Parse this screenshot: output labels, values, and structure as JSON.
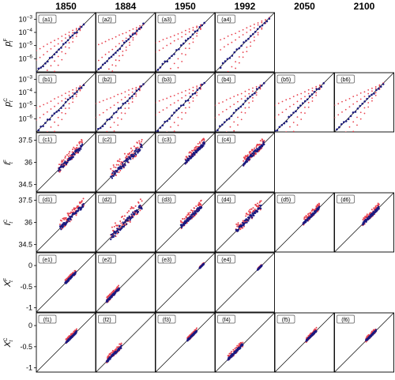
{
  "chart_data": {
    "type": "scatter",
    "layout": "grid 6 rows × 6 columns; identity diagonal in every panel; blue points = main series, red points = spread",
    "columns": [
      "1850",
      "1884",
      "1950",
      "1992",
      "2050",
      "2100"
    ],
    "rows": [
      {
        "id": "a",
        "ylabel": "p",
        "sup": "F",
        "sub": "t",
        "scale": "log",
        "ticks": [
          {
            "label": "10",
            "exp": "−3",
            "value": -3
          },
          {
            "label": "10",
            "exp": "−4",
            "value": -4
          },
          {
            "label": "10",
            "exp": "−5",
            "value": -5
          },
          {
            "label": "10",
            "exp": "−6",
            "value": -6
          }
        ],
        "ylim": [
          -7,
          -2.5
        ],
        "panels": [
          {
            "label": "(a1)",
            "present": true,
            "range": [
              -7,
              -3.4
            ],
            "fan": [
              0.55,
              0.75,
              1.25,
              1.6
            ]
          },
          {
            "label": "(a2)",
            "present": true,
            "range": [
              -6.8,
              -3.4
            ],
            "fan": [
              0.45,
              0.8,
              1.3,
              1.5
            ]
          },
          {
            "label": "(a3)",
            "present": true,
            "range": [
              -7,
              -3.3
            ],
            "fan": [
              0.4,
              0.6,
              1.35,
              1.7
            ]
          },
          {
            "label": "(a4)",
            "present": true,
            "range": [
              -6.6,
              -2.9
            ],
            "fan": [
              0.45,
              0.65,
              1.3,
              1.5
            ]
          },
          {
            "label": "",
            "present": false
          },
          {
            "label": "",
            "present": false
          }
        ]
      },
      {
        "id": "b",
        "ylabel": "p",
        "sup": "C",
        "sub": "t",
        "scale": "log",
        "ticks": [
          {
            "label": "10",
            "exp": "−3",
            "value": -3
          },
          {
            "label": "10",
            "exp": "−4",
            "value": -4
          },
          {
            "label": "10",
            "exp": "−5",
            "value": -5
          },
          {
            "label": "10",
            "exp": "−6",
            "value": -6
          }
        ],
        "ylim": [
          -7,
          -2.5
        ],
        "panels": [
          {
            "label": "(b1)",
            "present": true,
            "range": [
              -7,
              -3.4
            ],
            "fan": [
              0.5,
              0.75,
              1.3,
              1.6
            ]
          },
          {
            "label": "(b2)",
            "present": true,
            "range": [
              -7,
              -3.4
            ],
            "fan": [
              0.4,
              0.7,
              1.3,
              1.6
            ]
          },
          {
            "label": "(b3)",
            "present": true,
            "range": [
              -7,
              -3.3
            ],
            "fan": [
              0.4,
              0.65,
              1.3,
              1.6
            ]
          },
          {
            "label": "(b4)",
            "present": true,
            "range": [
              -7,
              -3.3
            ],
            "fan": [
              0.45,
              0.7,
              1.3,
              1.6
            ]
          },
          {
            "label": "(b5)",
            "present": true,
            "range": [
              -7,
              -3.3
            ],
            "fan": [
              0.45,
              0.7,
              1.3,
              1.6
            ]
          },
          {
            "label": "(b6)",
            "present": true,
            "range": [
              -7,
              -3.3
            ],
            "fan": [
              0.45,
              0.7,
              1.3,
              1.6
            ]
          }
        ]
      },
      {
        "id": "c",
        "ylabel": "I",
        "sup": "F",
        "sub": "t",
        "scale": "linear",
        "ticks": [
          {
            "label": "37.5",
            "value": 37.5
          },
          {
            "label": "36",
            "value": 36
          },
          {
            "label": "34.5",
            "value": 34.5
          }
        ],
        "ylim": [
          34,
          38
        ],
        "panels": [
          {
            "label": "(c1)",
            "present": true,
            "range": [
              35.5,
              37.1
            ],
            "fan": [
              1.7
            ]
          },
          {
            "label": "(c2)",
            "present": true,
            "range": [
              35.0,
              37.1
            ],
            "fan": [
              1.6
            ]
          },
          {
            "label": "(c3)",
            "present": true,
            "range": [
              36.0,
              37.3
            ],
            "fan": [
              1.5
            ]
          },
          {
            "label": "(c4)",
            "present": true,
            "range": [
              35.9,
              37.3
            ],
            "fan": [
              1.6
            ]
          },
          {
            "label": "",
            "present": false
          },
          {
            "label": "",
            "present": false
          }
        ]
      },
      {
        "id": "d",
        "ylabel": "I",
        "sup": "C",
        "sub": "t",
        "scale": "linear",
        "ticks": [
          {
            "label": "37.5",
            "value": 37.5
          },
          {
            "label": "36",
            "value": 36
          },
          {
            "label": "34.5",
            "value": 34.5
          }
        ],
        "ylim": [
          34,
          38
        ],
        "panels": [
          {
            "label": "(d1)",
            "present": true,
            "range": [
              35.6,
              37.2
            ],
            "fan": [
              1.7
            ]
          },
          {
            "label": "(d2)",
            "present": true,
            "range": [
              35.0,
              37.1
            ],
            "fan": [
              1.6
            ]
          },
          {
            "label": "(d3)",
            "present": true,
            "range": [
              35.7,
              37.1
            ],
            "fan": [
              1.6
            ]
          },
          {
            "label": "(d4)",
            "present": true,
            "range": [
              35.4,
              37.1
            ],
            "fan": [
              1.6
            ]
          },
          {
            "label": "(d5)",
            "present": true,
            "range": [
              35.9,
              37.0
            ],
            "fan": [
              1.6
            ]
          },
          {
            "label": "(d6)",
            "present": true,
            "range": [
              35.9,
              37.0
            ],
            "fan": [
              1.6
            ]
          }
        ]
      },
      {
        "id": "e",
        "ylabel": "X",
        "sup": "F",
        "sub": "t",
        "scale": "linear",
        "ticks": [
          {
            "label": "0",
            "value": 0
          },
          {
            "label": "-0.5",
            "value": -0.5
          },
          {
            "label": "-1",
            "value": -1
          }
        ],
        "ylim": [
          -1.1,
          0.3
        ],
        "panels": [
          {
            "label": "(e1)",
            "present": true,
            "range": [
              -0.42,
              -0.17
            ],
            "fan": [
              1.05
            ]
          },
          {
            "label": "(e2)",
            "present": true,
            "range": [
              -0.85,
              -0.55
            ],
            "fan": [
              1.05
            ]
          },
          {
            "label": "(e3)",
            "present": true,
            "range": [
              -0.06,
              0.04
            ],
            "fan": [
              1.05
            ]
          },
          {
            "label": "(e4)",
            "present": true,
            "range": [
              -0.1,
              0.0
            ],
            "fan": [
              1.05
            ]
          },
          {
            "label": "",
            "present": false
          },
          {
            "label": "",
            "present": false
          }
        ]
      },
      {
        "id": "f",
        "ylabel": "X",
        "sup": "C",
        "sub": "t",
        "scale": "linear",
        "ticks": [
          {
            "label": "0",
            "value": 0
          },
          {
            "label": "-0.5",
            "value": -0.5
          },
          {
            "label": "-1",
            "value": -1
          }
        ],
        "ylim": [
          -1.1,
          0.3
        ],
        "panels": [
          {
            "label": "(f1)",
            "present": true,
            "range": [
              -0.4,
              -0.15
            ],
            "fan": [
              1.05
            ]
          },
          {
            "label": "(f2)",
            "present": true,
            "range": [
              -0.85,
              -0.5
            ],
            "fan": [
              1.05
            ]
          },
          {
            "label": "(f3)",
            "present": true,
            "range": [
              -0.35,
              -0.13
            ],
            "fan": [
              1.05
            ]
          },
          {
            "label": "(f4)",
            "present": true,
            "range": [
              -0.8,
              -0.45
            ],
            "fan": [
              1.05
            ]
          },
          {
            "label": "(f5)",
            "present": true,
            "range": [
              -0.36,
              -0.12
            ],
            "fan": [
              1.05
            ]
          },
          {
            "label": "(f6)",
            "present": true,
            "range": [
              -0.36,
              -0.12
            ],
            "fan": [
              1.05
            ]
          }
        ]
      }
    ],
    "colors": {
      "main": "#1a1a80",
      "spread": "#e8434f",
      "axis": "#000000",
      "label_box": "#555555"
    }
  }
}
